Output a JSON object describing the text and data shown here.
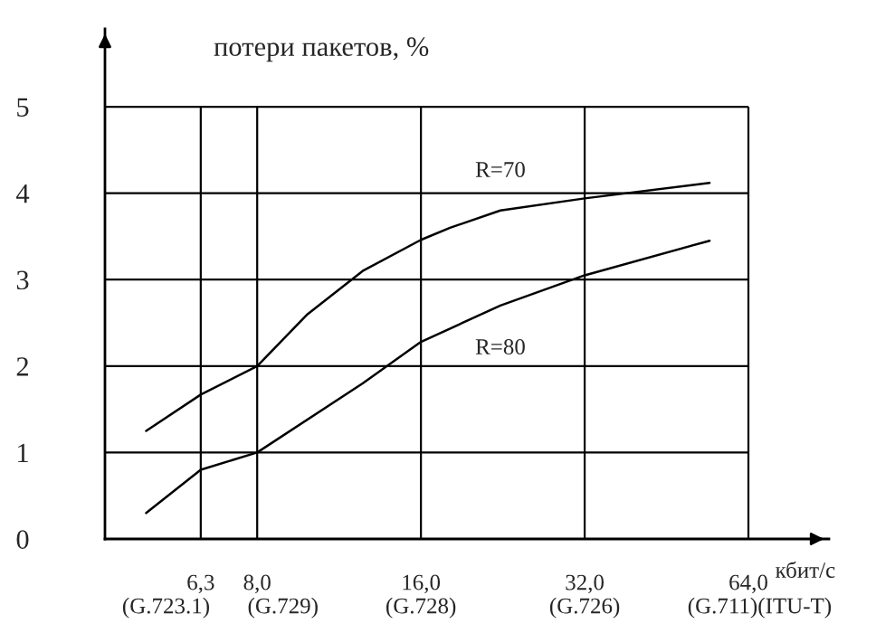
{
  "chart_data": {
    "type": "line",
    "ylabel": "потери пакетов, %",
    "xlabel": "кбит/с",
    "annotations": [
      "(G.723.1)",
      "(G.729)",
      "(G.728)",
      "(G.726)",
      "(G.711)",
      "(ITU-T)"
    ],
    "log": "x",
    "xlim": [
      4.2,
      90
    ],
    "ylim": [
      0,
      5.9
    ],
    "xticks": [
      {
        "value": 6.3,
        "label": "6,3"
      },
      {
        "value": 8,
        "label": "8,0"
      },
      {
        "value": 16,
        "label": "16,0"
      },
      {
        "value": 32,
        "label": "32,0"
      },
      {
        "value": 64,
        "label": "64,0"
      }
    ],
    "yticks": [
      0,
      1,
      2,
      3,
      4,
      5
    ],
    "grid": true,
    "series": [
      {
        "name": "R=70",
        "color": "#000000",
        "x": [
          5,
          6.3,
          8,
          9.9,
          12.5,
          16,
          18.1,
          22.4,
          32,
          54.3
        ],
        "values": [
          1.25,
          1.67,
          2.0,
          2.6,
          3.1,
          3.46,
          3.6,
          3.8,
          3.94,
          4.12
        ]
      },
      {
        "name": "R=80",
        "color": "#000000",
        "x": [
          5,
          6.3,
          8,
          12.5,
          16,
          22.4,
          32,
          54.3
        ],
        "values": [
          0.3,
          0.8,
          1.0,
          1.8,
          2.28,
          2.7,
          3.05,
          3.45
        ]
      }
    ]
  }
}
